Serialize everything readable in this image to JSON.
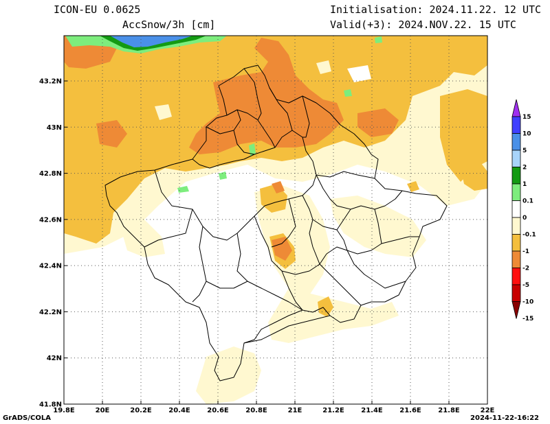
{
  "header": {
    "model": "ICON-EU 0.0625",
    "variable": "AccSnow/3h [cm]",
    "init": "Initialisation: 2024.11.22. 12 UTC",
    "valid": "Valid(+3): 2024.NOV.22. 15 UTC"
  },
  "axes": {
    "lon_ticks": [
      "19.8E",
      "20E",
      "20.2E",
      "20.4E",
      "20.6E",
      "20.8E",
      "21E",
      "21.2E",
      "21.4E",
      "21.6E",
      "21.8E",
      "22E"
    ],
    "lat_ticks": [
      "43.2N",
      "43N",
      "42.8N",
      "42.6N",
      "42.4N",
      "42.2N",
      "42N",
      "41.8N"
    ]
  },
  "legend": {
    "labels": [
      "15",
      "10",
      "5",
      "2",
      "1",
      "0.1",
      "0",
      "-0.1",
      "-1",
      "-2",
      "-5",
      "-10",
      "-15"
    ],
    "colors": [
      "#a030f0",
      "#4040ff",
      "#4a90e8",
      "#a8d4fa",
      "#139a13",
      "#7ded7d",
      "#ffffff",
      "#fff8d0",
      "#f4bf3e",
      "#ee8a36",
      "#ff1010",
      "#c80000",
      "#8a0000"
    ]
  },
  "colors": {
    "light_yellow": "#fff8d0",
    "yellow_orange": "#f4bf3e",
    "orange": "#ee8a36",
    "light_green": "#7ded7d",
    "dark_green": "#139a13",
    "blue": "#4a90e8"
  },
  "footer": {
    "left": "GrADS/COLA",
    "right": "2024-11-22-16:22"
  }
}
